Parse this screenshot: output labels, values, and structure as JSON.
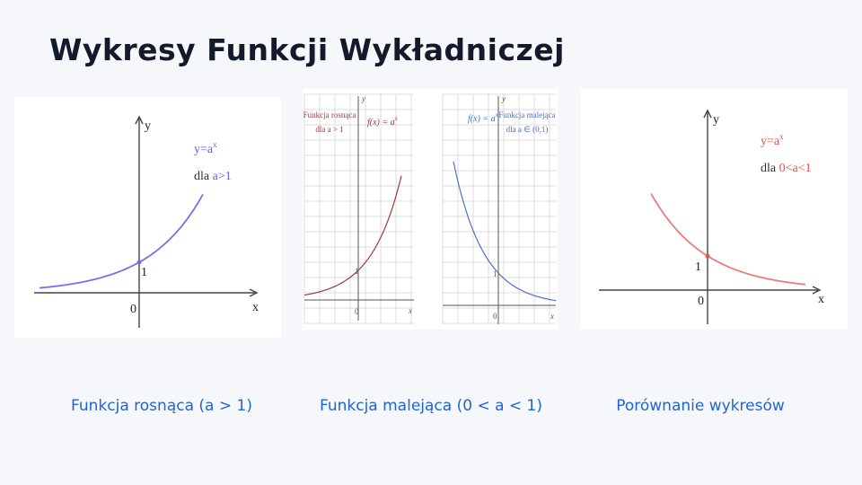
{
  "slide": {
    "title": "Wykresy Funkcji Wykładniczej"
  },
  "captions": {
    "rising": "Funkcja rosnąca (a > 1)",
    "falling": "Funkcja malejąca (0 < a < 1)",
    "compare": "Porównanie wykresów"
  },
  "colors": {
    "rising": "#7b6cf4",
    "rising_doc": "#9a3b3b",
    "falling_doc": "#4f72c0",
    "falling": "#f07a7a",
    "caption": "#1f63d8"
  },
  "chart_data": [
    {
      "type": "line",
      "title": "",
      "xlabel": "x",
      "ylabel": "y",
      "formula": "y=a",
      "formula_exp": "x",
      "condition_prefix": "dla ",
      "condition": "a>1",
      "tick_label_zero": "0",
      "tick_label_one": "1",
      "series": [
        {
          "values_x": [
            -2.9,
            -2,
            -1,
            0,
            0.5,
            1,
            1.4
          ],
          "values_y": [
            0.13,
            0.25,
            0.5,
            1,
            1.41,
            2,
            2.64
          ]
        }
      ]
    },
    {
      "type": "line",
      "title": "",
      "xlabel": "x",
      "ylabel": "y",
      "formula": "f(x) = a",
      "formula_exp": "x",
      "description_lines": [
        "Funkcja rosnąca",
        "dla a > 1"
      ],
      "tick_label_zero": "0",
      "tick_label_one": "1",
      "series": [
        {
          "values_x": [
            -2,
            -1,
            0,
            0.5,
            1,
            1.5
          ],
          "values_y": [
            0.05,
            0.2,
            1,
            2.2,
            4.9,
            11
          ]
        }
      ]
    },
    {
      "type": "line",
      "title": "",
      "xlabel": "x",
      "ylabel": "y",
      "formula": "f(x) = a",
      "formula_exp": "x",
      "description_lines": [
        "Funkcja malejąca",
        "dla a ∈ (0,1)"
      ],
      "tick_label_zero": "0",
      "tick_label_one": "1",
      "series": [
        {
          "values_x": [
            -1.5,
            -1,
            -0.5,
            0,
            0.5,
            1,
            2
          ],
          "values_y": [
            11,
            4.9,
            2.2,
            1,
            0.45,
            0.2,
            0.04
          ]
        }
      ]
    },
    {
      "type": "line",
      "title": "",
      "xlabel": "x",
      "ylabel": "y",
      "formula": "y=a",
      "formula_exp": "x",
      "condition_prefix": "dla ",
      "condition": "0<a<1",
      "tick_label_zero": "0",
      "tick_label_one": "1",
      "series": [
        {
          "values_x": [
            -1.4,
            -1,
            0,
            1,
            2,
            3
          ],
          "values_y": [
            2.64,
            2,
            1,
            0.5,
            0.25,
            0.13
          ]
        }
      ]
    }
  ]
}
